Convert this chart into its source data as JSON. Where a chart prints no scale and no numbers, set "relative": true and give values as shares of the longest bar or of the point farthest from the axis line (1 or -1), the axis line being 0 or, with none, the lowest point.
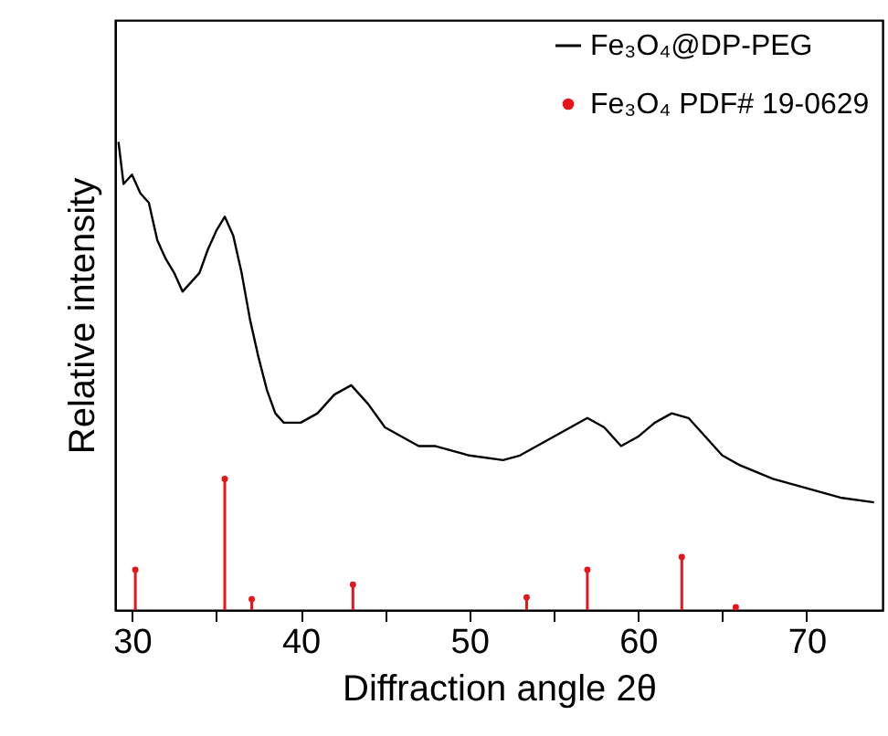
{
  "chart_data": {
    "type": "line",
    "relative": true,
    "xlabel": "Diffraction angle 2θ",
    "ylabel": "Relative intensity",
    "xlim": [
      29,
      74.5
    ],
    "xticks": [
      30,
      {
        "value": 35,
        "label": null
      },
      40,
      {
        "value": 45,
        "label": null
      },
      50,
      {
        "value": 55,
        "label": null
      },
      60,
      {
        "value": 65,
        "label": null
      },
      70
    ],
    "legend": "top right",
    "grid": false,
    "series": [
      {
        "name": "Fe₃O₄@DP-PEG",
        "color": "#000000",
        "marker": "none",
        "x": [
          29.2,
          29.5,
          30,
          30.5,
          31,
          31.5,
          32,
          32.5,
          33,
          33.5,
          34,
          34.5,
          35,
          35.5,
          36,
          36.5,
          37,
          37.5,
          38,
          38.5,
          39,
          40,
          41,
          42,
          43,
          44,
          45,
          46,
          47,
          48,
          50,
          52,
          53,
          54,
          55,
          56,
          57,
          58,
          59,
          60,
          61,
          62,
          63,
          64,
          65,
          66,
          68,
          70,
          72,
          74
        ],
        "values": [
          1,
          0.91,
          0.93,
          0.89,
          0.87,
          0.79,
          0.75,
          0.72,
          0.68,
          0.7,
          0.72,
          0.77,
          0.81,
          0.84,
          0.8,
          0.72,
          0.62,
          0.54,
          0.47,
          0.42,
          0.4,
          0.4,
          0.42,
          0.46,
          0.48,
          0.44,
          0.39,
          0.37,
          0.35,
          0.35,
          0.33,
          0.32,
          0.33,
          0.35,
          0.37,
          0.39,
          0.41,
          0.39,
          0.35,
          0.37,
          0.4,
          0.42,
          0.41,
          0.37,
          0.33,
          0.31,
          0.28,
          0.26,
          0.24,
          0.23
        ]
      },
      {
        "name": "Fe₃O₄ PDF# 19-0629",
        "type": "lollipop",
        "color": "#e8141c",
        "marker": "circle",
        "x": [
          30.2,
          35.5,
          37.1,
          43.1,
          53.4,
          57.0,
          62.6,
          65.8
        ],
        "values": [
          0.086,
          0.28,
          0.023,
          0.054,
          0.027,
          0.086,
          0.113,
          0.006
        ]
      }
    ]
  }
}
